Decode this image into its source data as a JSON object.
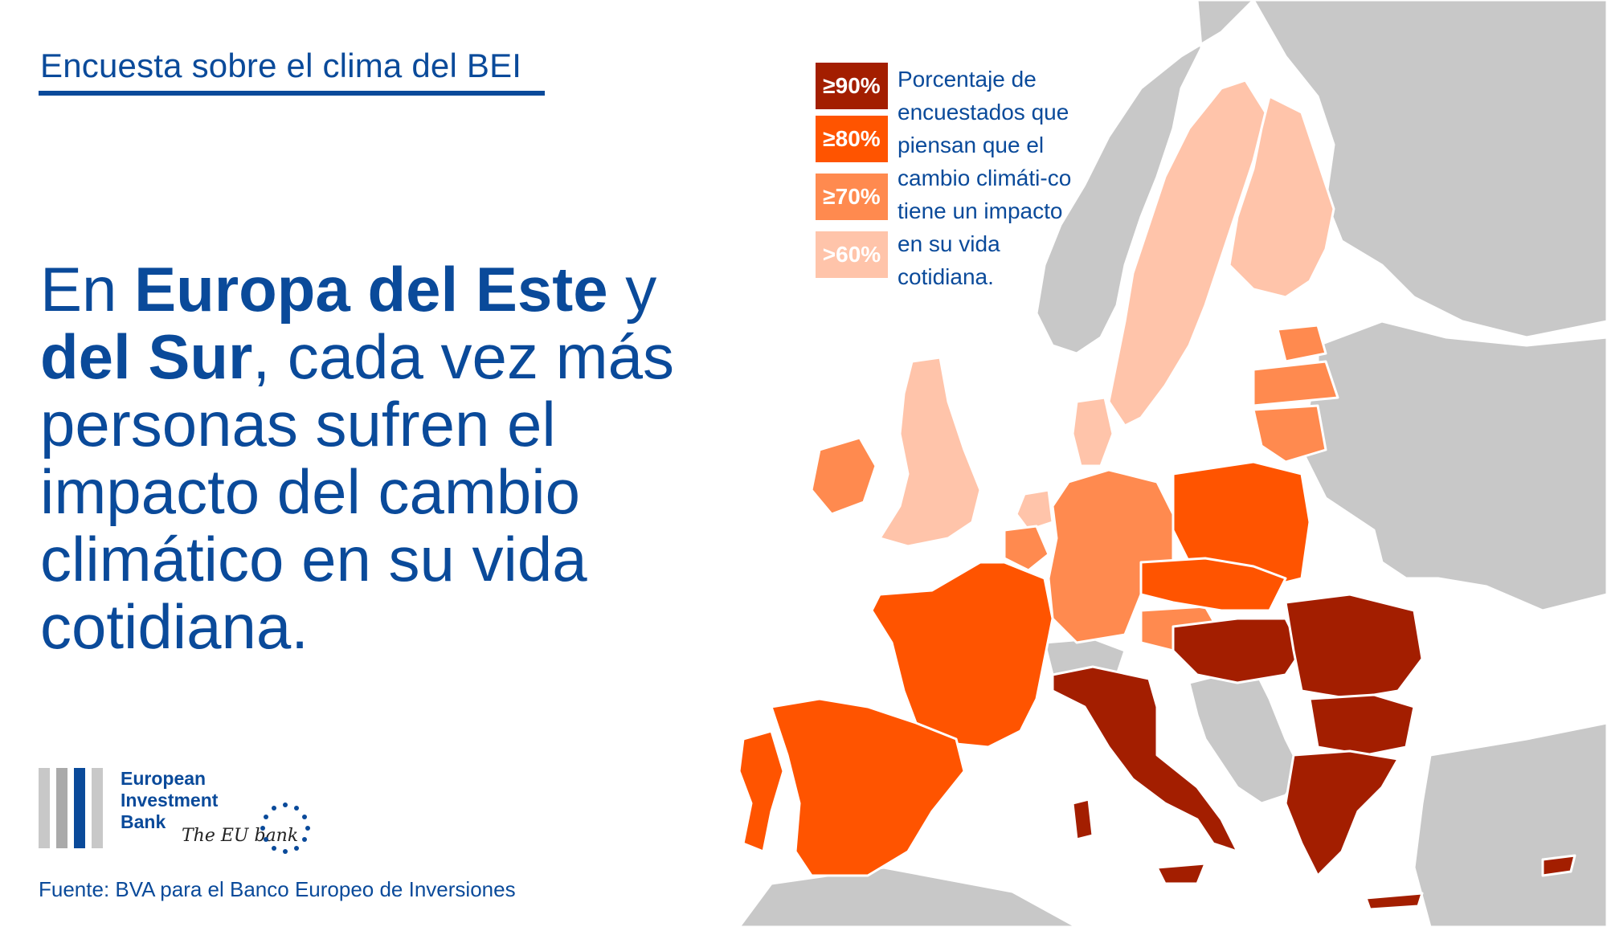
{
  "header": {
    "title": "Encuesta sobre el clima del BEI"
  },
  "headline": {
    "part1": "En ",
    "bold1": "Europa del Este",
    "part2": " y ",
    "bold2": "del Sur",
    "part3": ", cada vez más personas sufren el impacto del cambio climático en su vida cotidiana."
  },
  "legend": {
    "items": [
      {
        "label": "≥90%",
        "color": "#a31e00"
      },
      {
        "label": "≥80%",
        "color": "#ff5400"
      },
      {
        "label": "≥70%",
        "color": "#ff8a4f"
      },
      {
        "label": ">60%",
        "color": "#ffc4aa"
      }
    ],
    "description": "Porcentaje de encuestados que piensan que el cambio climáti-co tiene un impacto en su vida cotidiana."
  },
  "logo": {
    "line1": "European",
    "line2": "Investment",
    "line3": "Bank",
    "tagline": "The EU bank"
  },
  "source": "Fuente: BVA para el Banco Europeo de Inversiones",
  "colors": {
    "brand_blue": "#0a4a9a",
    "non_surveyed": "#c8c8c8",
    "border": "#ffffff"
  }
}
